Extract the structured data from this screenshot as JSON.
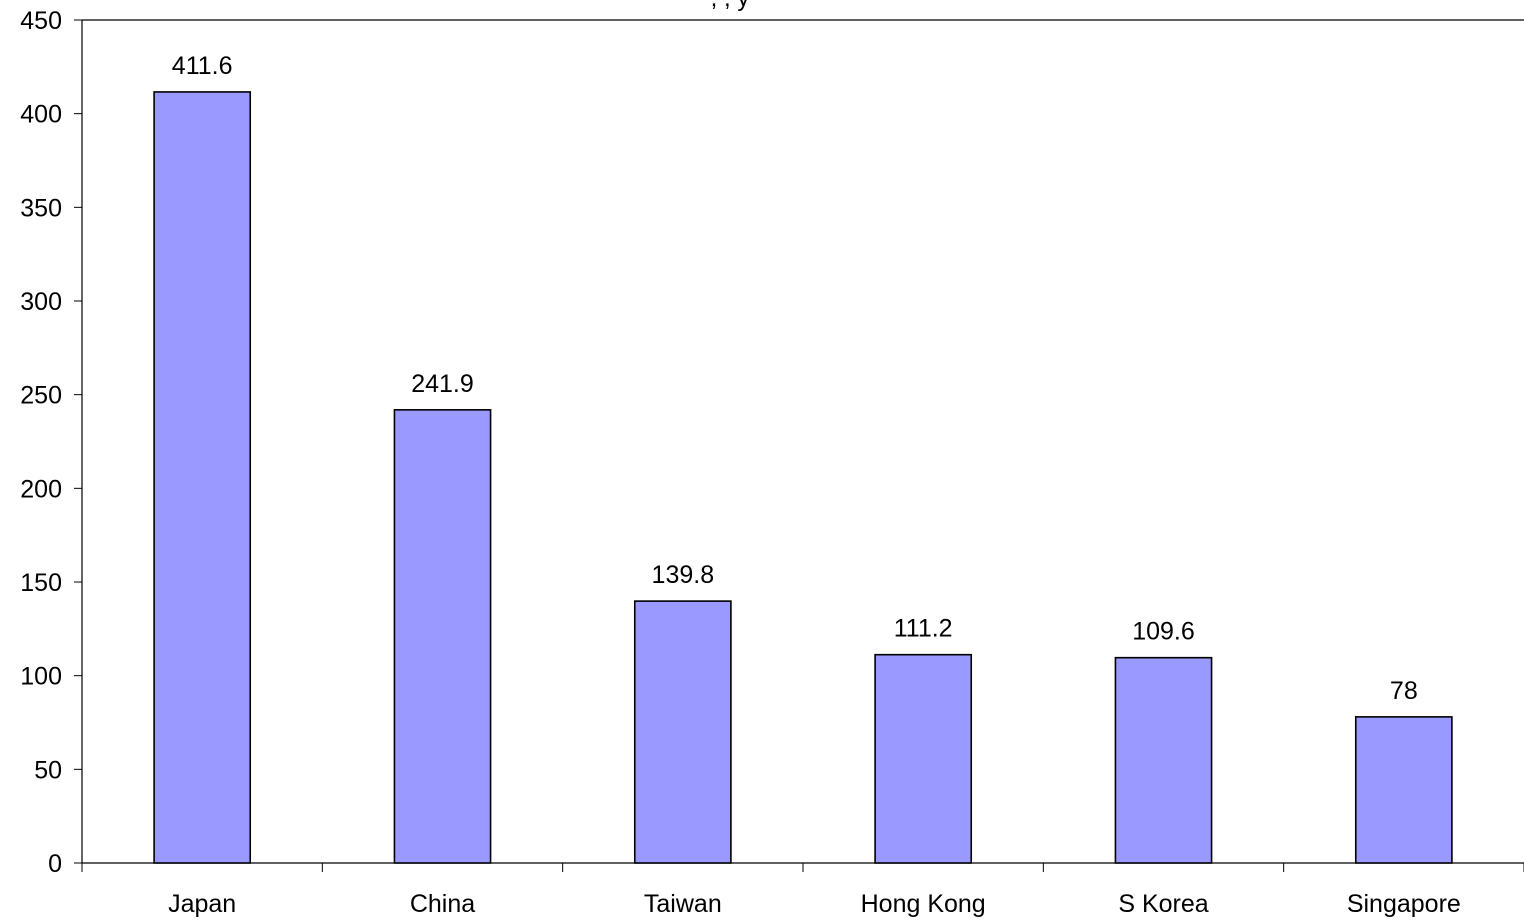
{
  "chart_data": {
    "type": "bar",
    "title_fragment": ", , y",
    "categories": [
      "Japan",
      "China",
      "Taiwan",
      "Hong Kong",
      "S Korea",
      "Singapore"
    ],
    "values": [
      411.6,
      241.9,
      139.8,
      111.2,
      109.6,
      78
    ],
    "data_labels": [
      "411.6",
      "241.9",
      "139.8",
      "111.2",
      "109.6",
      "78"
    ],
    "ylim": [
      0,
      450
    ],
    "yticks": [
      0,
      50,
      100,
      150,
      200,
      250,
      300,
      350,
      400,
      450
    ],
    "grid": false,
    "legend": "none",
    "bar_color": "#9999ff",
    "bar_border_color": "#000000"
  }
}
